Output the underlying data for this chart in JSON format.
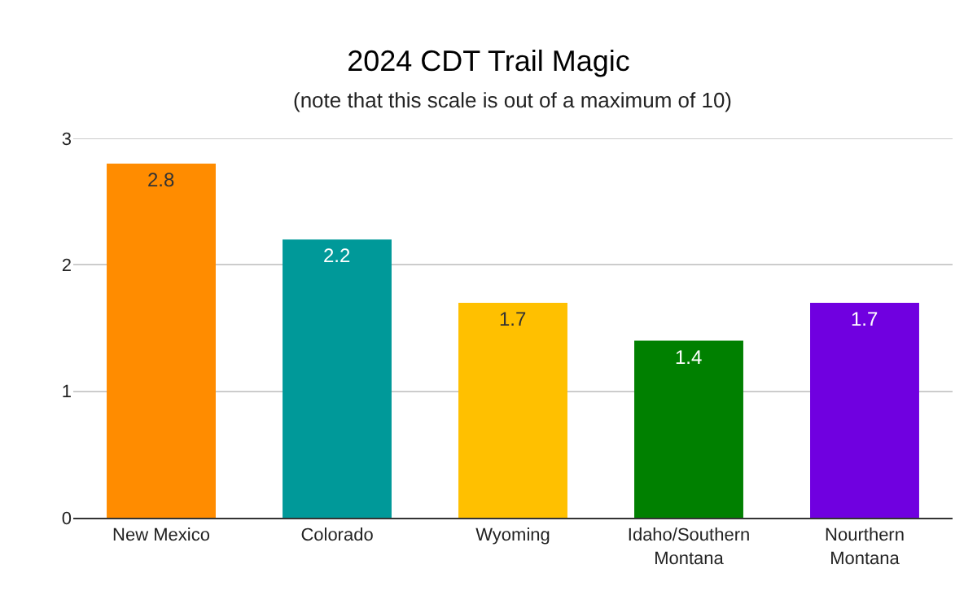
{
  "chart_data": {
    "type": "bar",
    "title": "2024 CDT Trail Magic",
    "subtitle": "(note that this scale is out of a maximum of 10)",
    "categories": [
      "New Mexico",
      "Colorado",
      "Wyoming",
      "Idaho/Southern Montana",
      "Nourthern Montana"
    ],
    "values": [
      2.8,
      2.2,
      1.7,
      1.4,
      1.7
    ],
    "colors": [
      "#ff8c00",
      "#009999",
      "#ffc000",
      "#008000",
      "#7000e0"
    ],
    "ylim": [
      0,
      3
    ],
    "yticks": [
      0,
      1,
      2,
      3
    ],
    "grid": "y",
    "data_labels": true
  }
}
